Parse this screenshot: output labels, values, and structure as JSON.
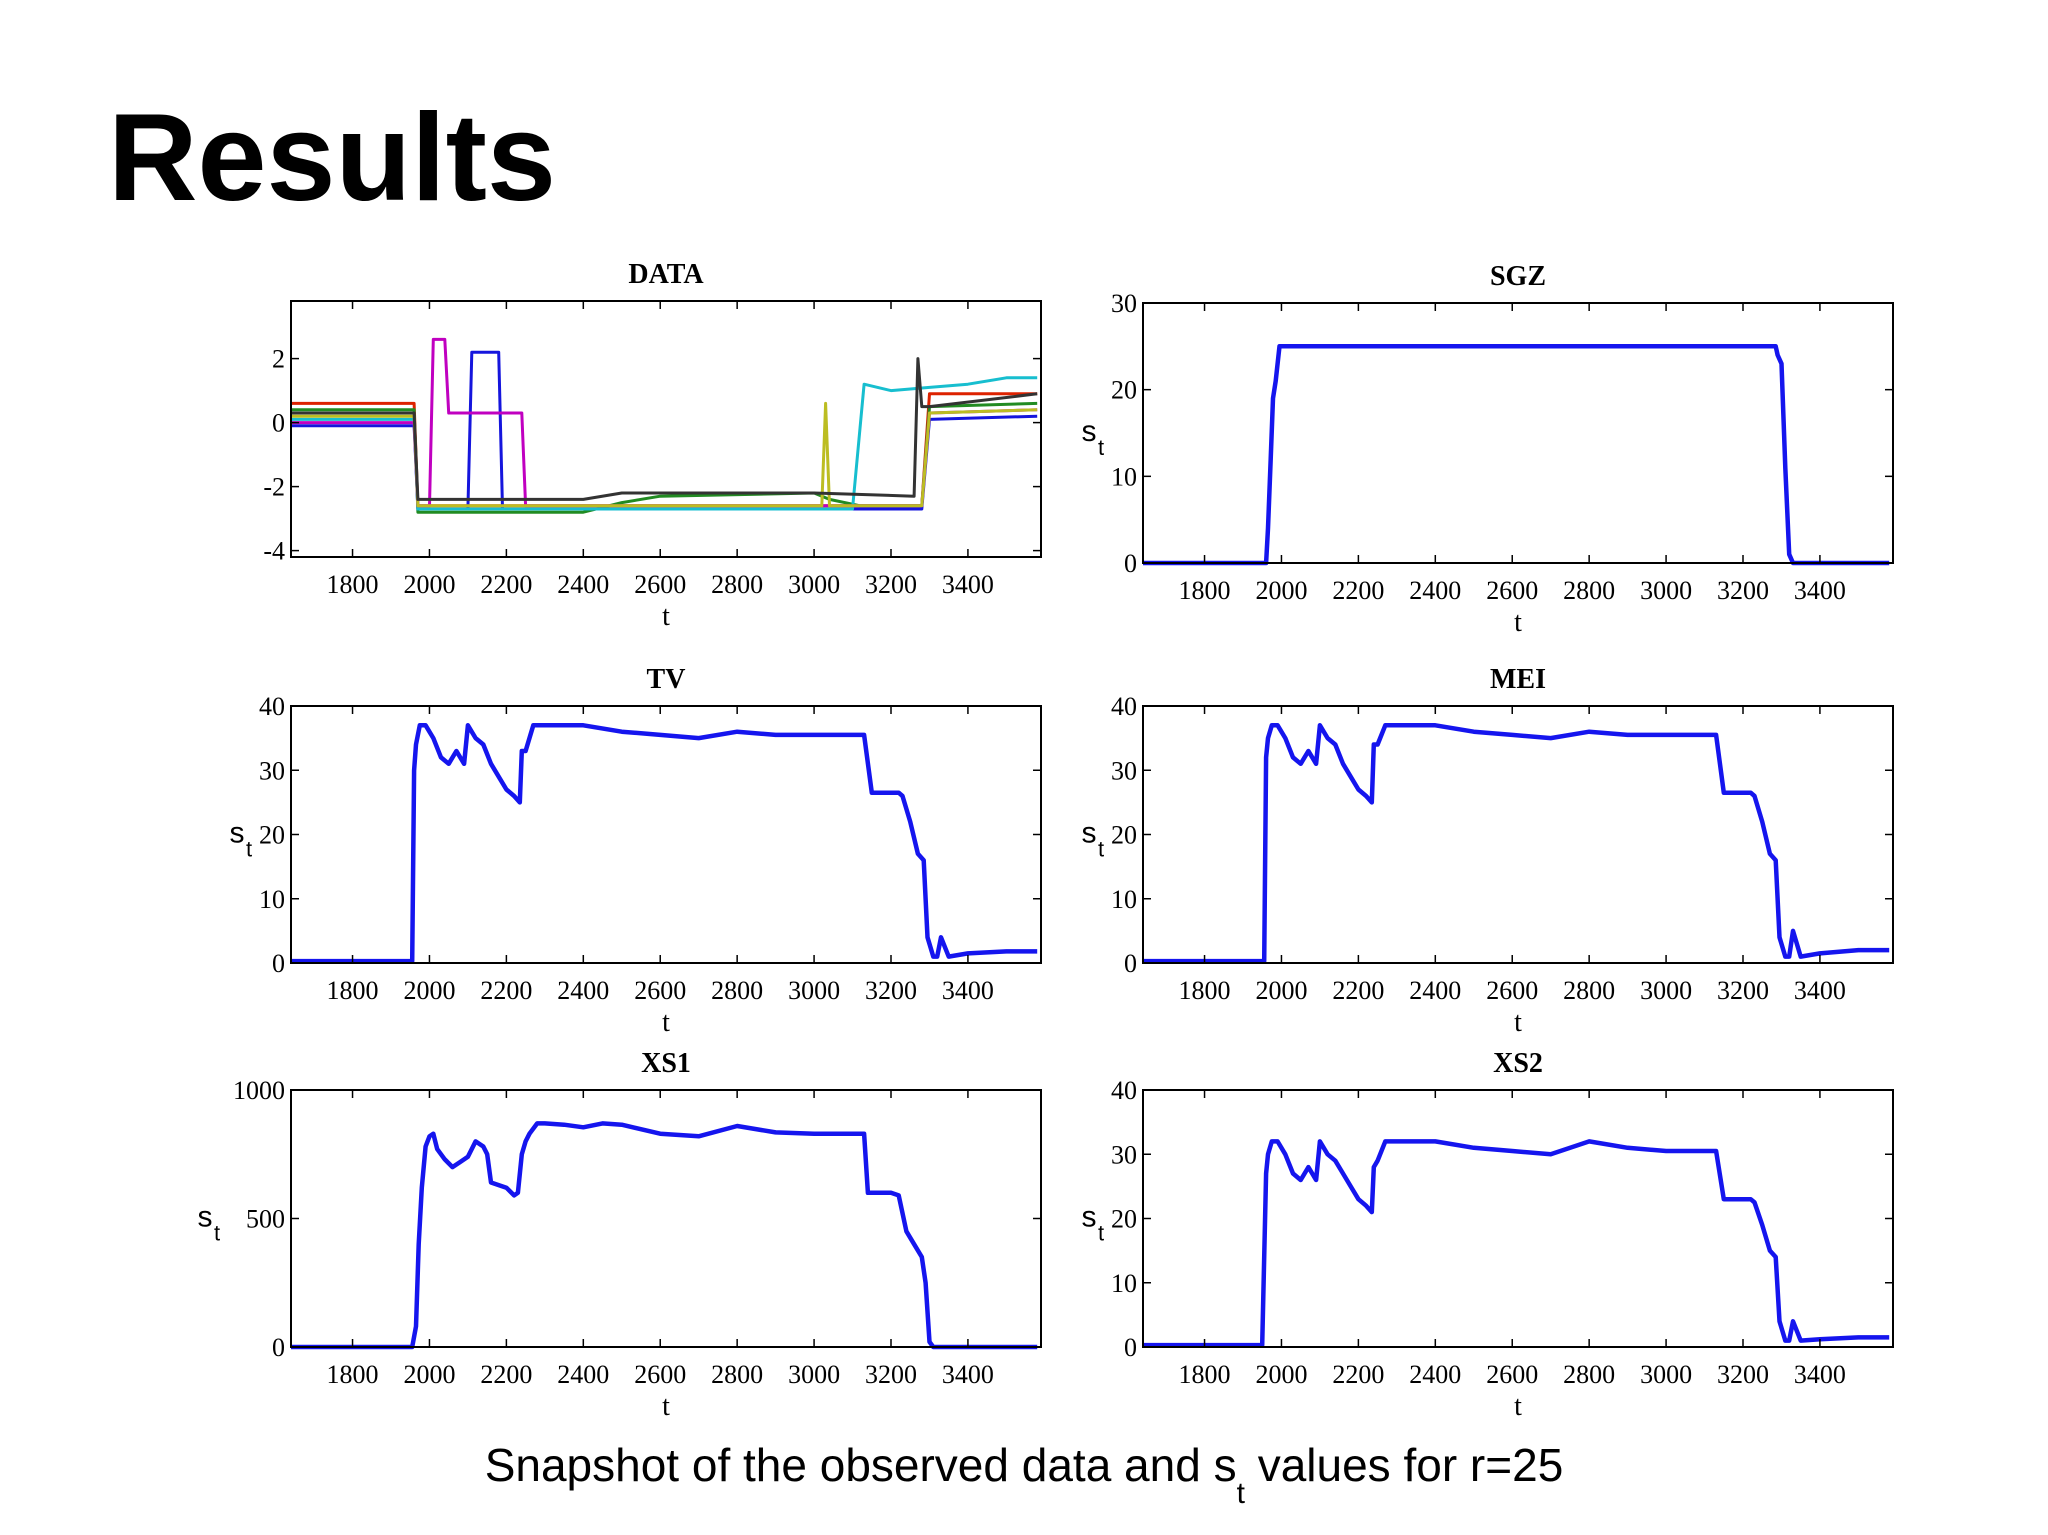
{
  "slide": {
    "title": "Results",
    "caption_before": "Snapshot of the observed data and s",
    "caption_sub": "t",
    "caption_after": " values for r=25"
  },
  "chart_data": [
    {
      "id": "data",
      "type": "line",
      "title": "DATA",
      "xlabel": "t",
      "ylabel": "",
      "ylabel_sub": "",
      "xlim": [
        1640,
        3590
      ],
      "ylim": [
        -4.2,
        3.8
      ],
      "xticks": [
        1800,
        2000,
        2200,
        2400,
        2600,
        2800,
        3000,
        3200,
        3400
      ],
      "yticks": [
        -4,
        -2,
        0,
        2
      ],
      "series": [
        {
          "name": "red",
          "color": "#dd2200",
          "x": [
            1640,
            1960,
            1970,
            2240,
            2245,
            3280,
            3300,
            3580
          ],
          "y": [
            0.6,
            0.6,
            -2.6,
            -2.6,
            -2.6,
            -2.6,
            0.9,
            0.9
          ]
        },
        {
          "name": "green",
          "color": "#228b22",
          "x": [
            1640,
            1960,
            1970,
            2400,
            2500,
            2600,
            3000,
            3040,
            3120,
            3280,
            3300,
            3580
          ],
          "y": [
            0.4,
            0.4,
            -2.8,
            -2.8,
            -2.5,
            -2.3,
            -2.2,
            -2.4,
            -2.6,
            -2.6,
            0.5,
            0.6
          ]
        },
        {
          "name": "blue",
          "color": "#1515dd",
          "x": [
            1640,
            1960,
            1970,
            2100,
            2110,
            2180,
            2190,
            2230,
            2240,
            3280,
            3300,
            3580
          ],
          "y": [
            -0.1,
            -0.1,
            -2.7,
            -2.7,
            2.2,
            2.2,
            -2.7,
            -2.7,
            -2.7,
            -2.7,
            0.1,
            0.2
          ]
        },
        {
          "name": "cyan",
          "color": "#17becf",
          "x": [
            1640,
            1960,
            1970,
            2230,
            2240,
            3100,
            3130,
            3200,
            3300,
            3400,
            3500,
            3580
          ],
          "y": [
            0.1,
            0.1,
            -2.7,
            -2.7,
            -2.7,
            -2.7,
            1.2,
            1.0,
            1.1,
            1.2,
            1.4,
            1.4
          ]
        },
        {
          "name": "magenta",
          "color": "#c000c0",
          "x": [
            1640,
            1960,
            1970,
            2000,
            2010,
            2040,
            2050,
            2240,
            2250,
            3280,
            3300,
            3580
          ],
          "y": [
            0.0,
            0.0,
            -2.6,
            -2.6,
            2.6,
            2.6,
            0.3,
            0.3,
            -2.6,
            -2.6,
            0.3,
            0.4
          ]
        },
        {
          "name": "olive",
          "color": "#bcbd22",
          "x": [
            1640,
            1960,
            1970,
            3020,
            3030,
            3040,
            3280,
            3300,
            3580
          ],
          "y": [
            0.2,
            0.2,
            -2.6,
            -2.6,
            0.6,
            -2.6,
            -2.6,
            0.3,
            0.4
          ]
        },
        {
          "name": "dark-gray",
          "color": "#333333",
          "x": [
            1640,
            1960,
            1970,
            2400,
            2500,
            3000,
            3260,
            3270,
            3280,
            3300,
            3580
          ],
          "y": [
            0.3,
            0.3,
            -2.4,
            -2.4,
            -2.2,
            -2.2,
            -2.3,
            2.0,
            0.5,
            0.5,
            0.9
          ]
        }
      ]
    },
    {
      "id": "sgz",
      "type": "line",
      "title": "SGZ",
      "xlabel": "t",
      "ylabel": "s",
      "ylabel_sub": "t",
      "xlim": [
        1640,
        3590
      ],
      "ylim": [
        0,
        30
      ],
      "xticks": [
        1800,
        2000,
        2200,
        2400,
        2600,
        2800,
        3000,
        3200,
        3400
      ],
      "yticks": [
        0,
        10,
        20,
        30
      ],
      "series": [
        {
          "name": "s_t",
          "color": "#1515ee",
          "x": [
            1640,
            1960,
            1965,
            1972,
            1978,
            1985,
            1995,
            3260,
            3285,
            3290,
            3300,
            3310,
            3320,
            3330,
            3580
          ],
          "y": [
            0,
            0,
            4,
            12,
            19,
            21,
            25,
            25,
            25,
            24,
            23,
            11,
            1,
            0,
            0
          ]
        }
      ]
    },
    {
      "id": "tv",
      "type": "line",
      "title": "TV",
      "xlabel": "t",
      "ylabel": "s",
      "ylabel_sub": "t",
      "xlim": [
        1640,
        3590
      ],
      "ylim": [
        0,
        40
      ],
      "xticks": [
        1800,
        2000,
        2200,
        2400,
        2600,
        2800,
        3000,
        3200,
        3400
      ],
      "yticks": [
        0,
        10,
        20,
        30,
        40
      ],
      "series": [
        {
          "name": "s_t",
          "color": "#1515ee",
          "x": [
            1640,
            1955,
            1960,
            1965,
            1975,
            1990,
            2010,
            2030,
            2050,
            2070,
            2090,
            2100,
            2120,
            2140,
            2160,
            2180,
            2200,
            2220,
            2235,
            2240,
            2250,
            2270,
            2300,
            2400,
            2500,
            2600,
            2700,
            2800,
            2900,
            3000,
            3100,
            3130,
            3150,
            3220,
            3230,
            3250,
            3270,
            3285,
            3295,
            3310,
            3320,
            3330,
            3350,
            3400,
            3500,
            3580
          ],
          "y": [
            0.3,
            0.3,
            30,
            34,
            37,
            37,
            35,
            32,
            31,
            33,
            31,
            37,
            35,
            34,
            31,
            29,
            27,
            26,
            25,
            33,
            33,
            37,
            37,
            37,
            36,
            35.5,
            35,
            36,
            35.5,
            35.5,
            35.5,
            35.5,
            26.5,
            26.5,
            26,
            22,
            17,
            16,
            4,
            1,
            1,
            4,
            1,
            1.5,
            1.8,
            1.8
          ]
        }
      ]
    },
    {
      "id": "mei",
      "type": "line",
      "title": "MEI",
      "xlabel": "t",
      "ylabel": "s",
      "ylabel_sub": "t",
      "xlim": [
        1640,
        3590
      ],
      "ylim": [
        0,
        40
      ],
      "xticks": [
        1800,
        2000,
        2200,
        2400,
        2600,
        2800,
        3000,
        3200,
        3400
      ],
      "yticks": [
        0,
        10,
        20,
        30,
        40
      ],
      "series": [
        {
          "name": "s_t",
          "color": "#1515ee",
          "x": [
            1640,
            1955,
            1960,
            1965,
            1975,
            1990,
            2010,
            2030,
            2050,
            2070,
            2090,
            2100,
            2120,
            2140,
            2160,
            2180,
            2200,
            2220,
            2235,
            2240,
            2250,
            2270,
            2300,
            2400,
            2500,
            2600,
            2700,
            2800,
            2900,
            3000,
            3100,
            3130,
            3150,
            3220,
            3230,
            3250,
            3270,
            3285,
            3295,
            3310,
            3320,
            3330,
            3350,
            3400,
            3500,
            3580
          ],
          "y": [
            0.3,
            0.3,
            32,
            35,
            37,
            37,
            35,
            32,
            31,
            33,
            31,
            37,
            35,
            34,
            31,
            29,
            27,
            26,
            25,
            34,
            34,
            37,
            37,
            37,
            36,
            35.5,
            35,
            36,
            35.5,
            35.5,
            35.5,
            35.5,
            26.5,
            26.5,
            26,
            22,
            17,
            16,
            4,
            1,
            1,
            5,
            1,
            1.5,
            2,
            2
          ]
        }
      ]
    },
    {
      "id": "xs1",
      "type": "line",
      "title": "XS1",
      "xlabel": "t",
      "ylabel": "s",
      "ylabel_sub": "t",
      "xlim": [
        1640,
        3590
      ],
      "ylim": [
        0,
        1000
      ],
      "xticks": [
        1800,
        2000,
        2200,
        2400,
        2600,
        2800,
        3000,
        3200,
        3400
      ],
      "yticks": [
        0,
        500,
        1000
      ],
      "series": [
        {
          "name": "s_t",
          "color": "#1515ee",
          "x": [
            1640,
            1955,
            1965,
            1972,
            1980,
            1990,
            2000,
            2010,
            2020,
            2040,
            2060,
            2080,
            2100,
            2120,
            2140,
            2150,
            2160,
            2180,
            2200,
            2220,
            2230,
            2240,
            2250,
            2260,
            2280,
            2300,
            2350,
            2400,
            2450,
            2500,
            2600,
            2700,
            2800,
            2900,
            3000,
            3050,
            3100,
            3130,
            3140,
            3200,
            3220,
            3240,
            3260,
            3280,
            3290,
            3300,
            3310,
            3320,
            3340,
            3580
          ],
          "y": [
            0,
            0,
            80,
            400,
            620,
            780,
            820,
            830,
            770,
            730,
            700,
            720,
            740,
            800,
            780,
            750,
            640,
            630,
            620,
            590,
            600,
            750,
            800,
            830,
            870,
            870,
            865,
            855,
            870,
            865,
            830,
            820,
            860,
            835,
            830,
            830,
            830,
            830,
            600,
            600,
            590,
            450,
            400,
            350,
            250,
            20,
            0,
            0,
            0,
            0
          ]
        }
      ]
    },
    {
      "id": "xs2",
      "type": "line",
      "title": "XS2",
      "xlabel": "t",
      "ylabel": "s",
      "ylabel_sub": "t",
      "xlim": [
        1640,
        3590
      ],
      "ylim": [
        0,
        40
      ],
      "xticks": [
        1800,
        2000,
        2200,
        2400,
        2600,
        2800,
        3000,
        3200,
        3400
      ],
      "yticks": [
        0,
        10,
        20,
        30,
        40
      ],
      "series": [
        {
          "name": "s_t",
          "color": "#1515ee",
          "x": [
            1640,
            1950,
            1960,
            1965,
            1975,
            1990,
            2010,
            2030,
            2050,
            2070,
            2090,
            2100,
            2120,
            2140,
            2160,
            2180,
            2200,
            2220,
            2235,
            2240,
            2250,
            2270,
            2300,
            2400,
            2500,
            2600,
            2700,
            2800,
            2900,
            3000,
            3100,
            3130,
            3150,
            3220,
            3230,
            3250,
            3270,
            3285,
            3295,
            3310,
            3320,
            3330,
            3350,
            3400,
            3500,
            3580
          ],
          "y": [
            0.3,
            0.3,
            27,
            30,
            32,
            32,
            30,
            27,
            26,
            28,
            26,
            32,
            30,
            29,
            27,
            25,
            23,
            22,
            21,
            28,
            29,
            32,
            32,
            32,
            31,
            30.5,
            30,
            32,
            31,
            30.5,
            30.5,
            30.5,
            23,
            23,
            22.5,
            19,
            15,
            14,
            4,
            1,
            1,
            4,
            1,
            1.2,
            1.5,
            1.5
          ]
        }
      ]
    }
  ]
}
